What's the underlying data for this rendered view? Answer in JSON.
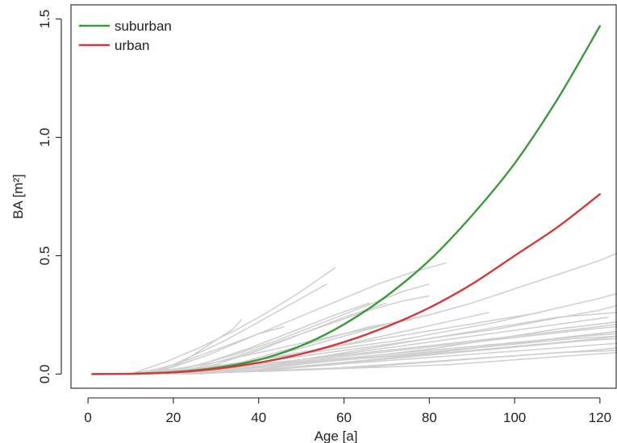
{
  "chart_data": {
    "type": "line",
    "title": "",
    "xlabel": "Age [a]",
    "ylabel": "BA [m²]",
    "xlim": [
      -4,
      124
    ],
    "ylim": [
      -0.06,
      1.56
    ],
    "x_ticks": [
      0,
      20,
      40,
      60,
      80,
      100,
      120
    ],
    "x_tick_labels": [
      "0",
      "20",
      "40",
      "60",
      "80",
      "100",
      "120"
    ],
    "y_ticks": [
      0,
      0.5,
      1,
      1.5
    ],
    "y_tick_labels": [
      "0.0",
      "0.5",
      "1.0",
      "1.5"
    ],
    "grid": false,
    "legend_position": "top-left",
    "series": [
      {
        "name": "suburban",
        "color": "#3a9a3a",
        "x": [
          1,
          10,
          20,
          30,
          40,
          50,
          60,
          70,
          80,
          90,
          100,
          110,
          120
        ],
        "y": [
          0,
          0.001,
          0.008,
          0.026,
          0.06,
          0.12,
          0.21,
          0.33,
          0.48,
          0.67,
          0.89,
          1.16,
          1.47
        ]
      },
      {
        "name": "urban",
        "color": "#d23a3a",
        "x": [
          1,
          10,
          20,
          30,
          40,
          50,
          60,
          70,
          80,
          90,
          100,
          110,
          120
        ],
        "y": [
          0,
          0.001,
          0.007,
          0.022,
          0.048,
          0.085,
          0.135,
          0.2,
          0.28,
          0.38,
          0.5,
          0.62,
          0.76
        ]
      }
    ],
    "background_color": "#cfcfcf",
    "background_series": [
      {
        "x": [
          10,
          18,
          26,
          34,
          42,
          50,
          58
        ],
        "y": [
          0,
          0.05,
          0.11,
          0.18,
          0.26,
          0.35,
          0.45
        ]
      },
      {
        "x": [
          12,
          20,
          28,
          36,
          44,
          52,
          60,
          68,
          76,
          84
        ],
        "y": [
          0,
          0.03,
          0.08,
          0.14,
          0.2,
          0.26,
          0.32,
          0.38,
          0.43,
          0.47
        ]
      },
      {
        "x": [
          14,
          24,
          34,
          44,
          54,
          64,
          74,
          80
        ],
        "y": [
          0,
          0.03,
          0.08,
          0.14,
          0.21,
          0.28,
          0.35,
          0.38
        ]
      },
      {
        "x": [
          10,
          20,
          30,
          40,
          50,
          60,
          70,
          80,
          90,
          100,
          110,
          120,
          124
        ],
        "y": [
          0,
          0.02,
          0.05,
          0.09,
          0.13,
          0.17,
          0.21,
          0.25,
          0.3,
          0.36,
          0.42,
          0.48,
          0.51
        ]
      },
      {
        "x": [
          16,
          22,
          28,
          34,
          36
        ],
        "y": [
          0,
          0.05,
          0.12,
          0.19,
          0.23
        ]
      },
      {
        "x": [
          14,
          20,
          26,
          32,
          38,
          44,
          50,
          56
        ],
        "y": [
          0,
          0.04,
          0.09,
          0.14,
          0.2,
          0.26,
          0.32,
          0.38
        ]
      },
      {
        "x": [
          18,
          26,
          34,
          42,
          50,
          58,
          66,
          74,
          80
        ],
        "y": [
          0,
          0.03,
          0.07,
          0.12,
          0.17,
          0.22,
          0.27,
          0.31,
          0.33
        ]
      },
      {
        "x": [
          12,
          24,
          36,
          48,
          60,
          72,
          84,
          96,
          108,
          120,
          124
        ],
        "y": [
          0,
          0.02,
          0.05,
          0.08,
          0.11,
          0.14,
          0.18,
          0.22,
          0.27,
          0.32,
          0.34
        ]
      },
      {
        "x": [
          12,
          24,
          36,
          48,
          60,
          72,
          84,
          96,
          108,
          120,
          124
        ],
        "y": [
          0,
          0.02,
          0.04,
          0.07,
          0.1,
          0.13,
          0.16,
          0.19,
          0.23,
          0.27,
          0.29
        ]
      },
      {
        "x": [
          14,
          26,
          38,
          50,
          62,
          74,
          86,
          98,
          110,
          122
        ],
        "y": [
          0,
          0.02,
          0.04,
          0.06,
          0.09,
          0.12,
          0.15,
          0.18,
          0.21,
          0.24
        ]
      },
      {
        "x": [
          10,
          25,
          40,
          55,
          70,
          85,
          100,
          115,
          124
        ],
        "y": [
          0,
          0.02,
          0.04,
          0.07,
          0.1,
          0.13,
          0.16,
          0.19,
          0.21
        ]
      },
      {
        "x": [
          15,
          30,
          45,
          60,
          75,
          90,
          105,
          120,
          124
        ],
        "y": [
          0,
          0.02,
          0.04,
          0.06,
          0.08,
          0.11,
          0.14,
          0.17,
          0.18
        ]
      },
      {
        "x": [
          18,
          30,
          42,
          54,
          66,
          78,
          90,
          102,
          114,
          124
        ],
        "y": [
          0,
          0.01,
          0.03,
          0.05,
          0.07,
          0.09,
          0.11,
          0.13,
          0.15,
          0.16
        ]
      },
      {
        "x": [
          20,
          35,
          50,
          65,
          80,
          95,
          110,
          124
        ],
        "y": [
          0,
          0.01,
          0.03,
          0.05,
          0.07,
          0.09,
          0.11,
          0.13
        ]
      },
      {
        "x": [
          22,
          38,
          54,
          70,
          86,
          102,
          118,
          124
        ],
        "y": [
          0,
          0.01,
          0.02,
          0.04,
          0.06,
          0.08,
          0.1,
          0.11
        ]
      },
      {
        "x": [
          20,
          30,
          40,
          50,
          60,
          70
        ],
        "y": [
          0,
          0.04,
          0.1,
          0.17,
          0.24,
          0.3
        ]
      },
      {
        "x": [
          18,
          28,
          38,
          48,
          58,
          66
        ],
        "y": [
          0,
          0.05,
          0.11,
          0.18,
          0.25,
          0.3
        ]
      },
      {
        "x": [
          22,
          32,
          42,
          52,
          62,
          72,
          80
        ],
        "y": [
          0,
          0.03,
          0.07,
          0.12,
          0.17,
          0.22,
          0.25
        ]
      },
      {
        "x": [
          24,
          34,
          44,
          54,
          64,
          74,
          84,
          94
        ],
        "y": [
          0,
          0.03,
          0.06,
          0.1,
          0.14,
          0.18,
          0.22,
          0.26
        ]
      },
      {
        "x": [
          16,
          26,
          36,
          46,
          56,
          66,
          76,
          86,
          96,
          106
        ],
        "y": [
          0,
          0.02,
          0.05,
          0.08,
          0.11,
          0.14,
          0.17,
          0.2,
          0.23,
          0.26
        ]
      },
      {
        "x": [
          30,
          40,
          50,
          60,
          70,
          80,
          90,
          100,
          110,
          124
        ],
        "y": [
          0.01,
          0.03,
          0.06,
          0.09,
          0.12,
          0.15,
          0.18,
          0.21,
          0.24,
          0.26
        ]
      },
      {
        "x": [
          26,
          36,
          46,
          56,
          66,
          76
        ],
        "y": [
          0.01,
          0.05,
          0.1,
          0.15,
          0.2,
          0.23
        ]
      },
      {
        "x": [
          28,
          38,
          48,
          58,
          68,
          78,
          88,
          98,
          108,
          118,
          124
        ],
        "y": [
          0.01,
          0.03,
          0.05,
          0.07,
          0.09,
          0.11,
          0.13,
          0.15,
          0.17,
          0.19,
          0.2
        ]
      },
      {
        "x": [
          32,
          44,
          56,
          68,
          80,
          92,
          104,
          116,
          124
        ],
        "y": [
          0.01,
          0.02,
          0.04,
          0.06,
          0.08,
          0.1,
          0.12,
          0.14,
          0.15
        ]
      },
      {
        "x": [
          35,
          50,
          65,
          80,
          95,
          110,
          124
        ],
        "y": [
          0.01,
          0.02,
          0.03,
          0.05,
          0.07,
          0.09,
          0.1
        ]
      },
      {
        "x": [
          40,
          55,
          70,
          85,
          100,
          115,
          124
        ],
        "y": [
          0.01,
          0.02,
          0.03,
          0.04,
          0.06,
          0.08,
          0.09
        ]
      },
      {
        "x": [
          20,
          32,
          44,
          56,
          68,
          80,
          92,
          104,
          116,
          124
        ],
        "y": [
          0,
          0.02,
          0.04,
          0.06,
          0.08,
          0.1,
          0.12,
          0.14,
          0.16,
          0.17
        ]
      },
      {
        "x": [
          24,
          36,
          48,
          60,
          72,
          84,
          96,
          108,
          120,
          124
        ],
        "y": [
          0,
          0.01,
          0.03,
          0.05,
          0.07,
          0.09,
          0.11,
          0.13,
          0.15,
          0.16
        ]
      },
      {
        "x": [
          10,
          16,
          22,
          28,
          34,
          40,
          46
        ],
        "y": [
          0,
          0.02,
          0.05,
          0.09,
          0.13,
          0.17,
          0.2
        ]
      },
      {
        "x": [
          26,
          40,
          54,
          68,
          82,
          96,
          110,
          124
        ],
        "y": [
          0,
          0.02,
          0.05,
          0.08,
          0.11,
          0.15,
          0.19,
          0.22
        ]
      },
      {
        "x": [
          30,
          44,
          58,
          72,
          86,
          100,
          114,
          124
        ],
        "y": [
          0.01,
          0.02,
          0.04,
          0.07,
          0.1,
          0.13,
          0.16,
          0.18
        ]
      }
    ]
  }
}
